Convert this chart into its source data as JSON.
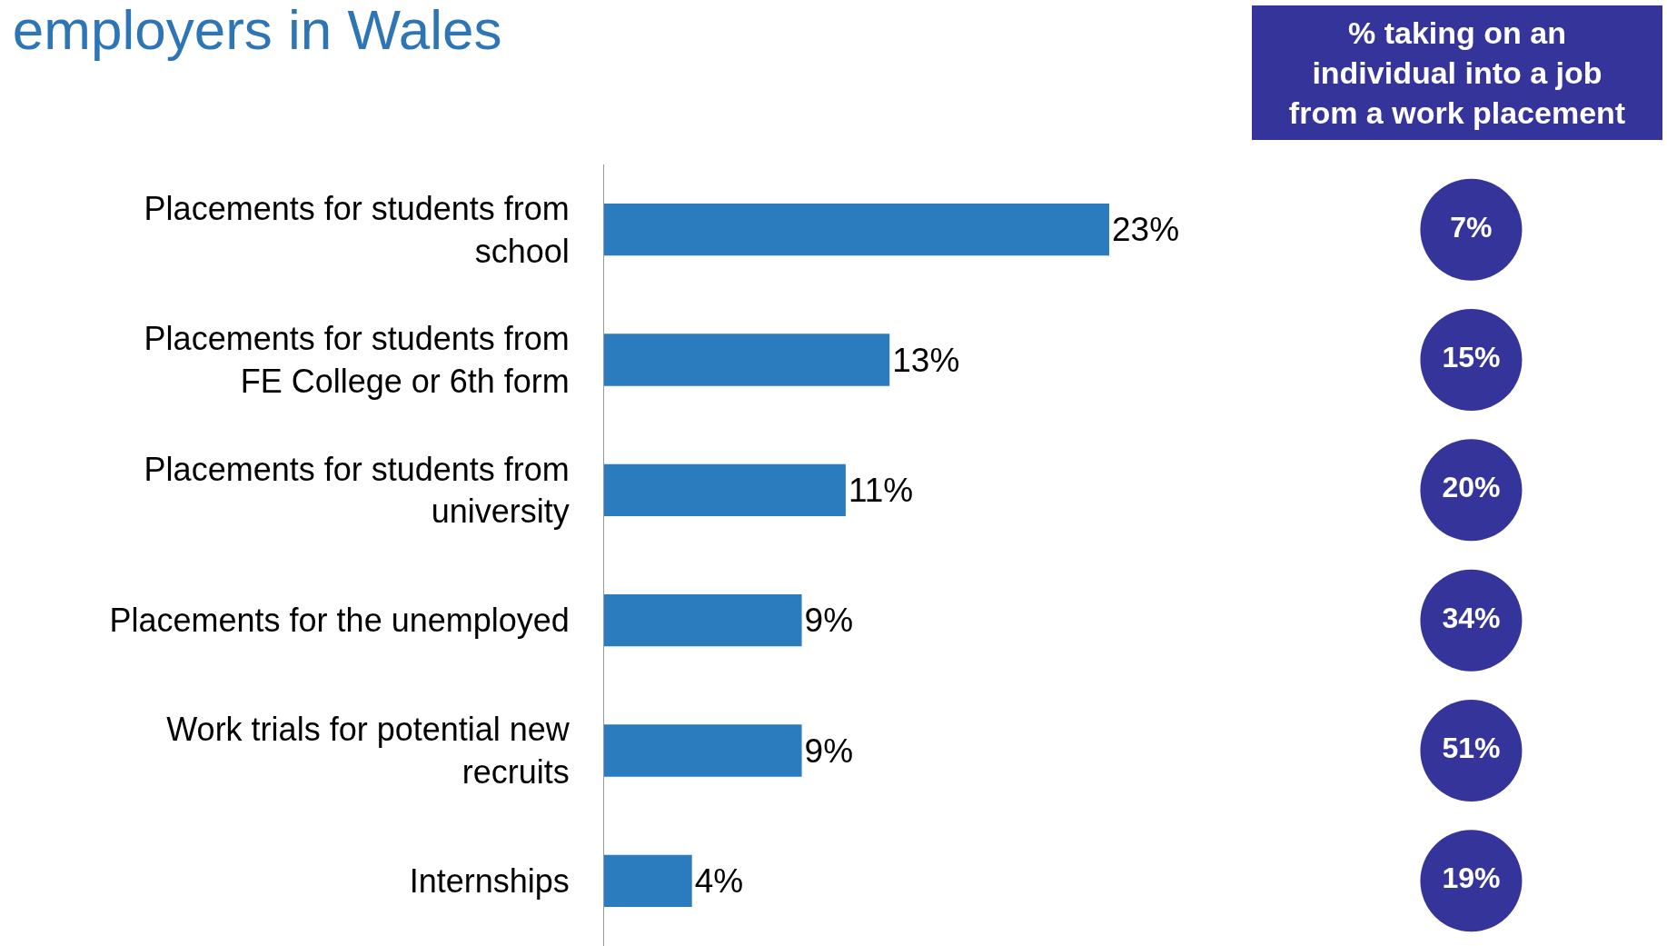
{
  "chart_data": [
    {
      "type": "bar",
      "title": "employers in Wales",
      "orientation": "horizontal",
      "categories": [
        "Placements for students from school",
        "Placements for students from FE College or 6th form",
        "Placements for students from university",
        "Placements for the unemployed",
        "Work trials for potential new recruits",
        "Internships"
      ],
      "values": [
        23,
        13,
        11,
        9,
        9,
        4
      ],
      "value_labels": [
        "23%",
        "13%",
        "11%",
        "9%",
        "9%",
        "4%"
      ],
      "color": "#2b7bbf",
      "tick_labels": "y",
      "grid": false,
      "legend": false
    },
    {
      "type": "other",
      "title": "% taking on an individual into a job from a work placement",
      "categories": [
        null,
        null,
        null,
        null,
        null,
        null
      ],
      "values": [
        7,
        15,
        20,
        34,
        51,
        19
      ],
      "value_labels": [
        "7%",
        "15%",
        "20%",
        "34%",
        "51%",
        "19%"
      ],
      "color": "#34349a"
    }
  ]
}
